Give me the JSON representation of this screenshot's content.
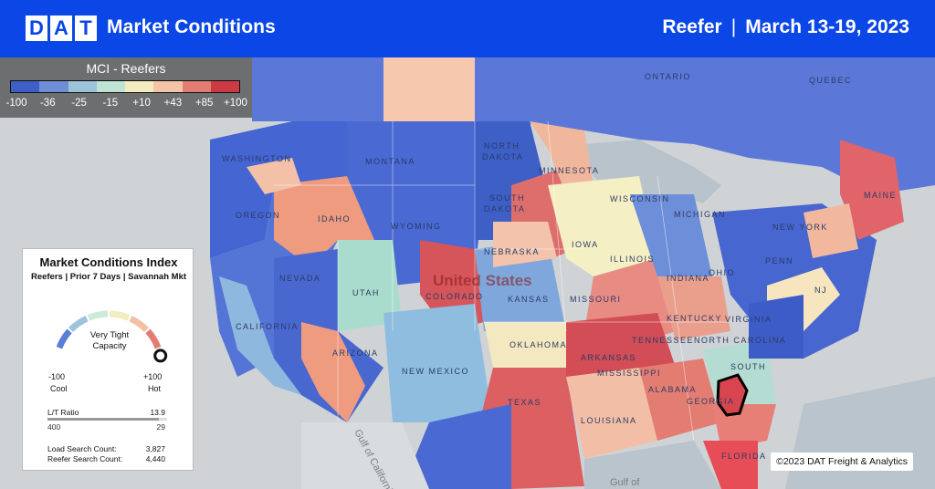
{
  "header": {
    "logo_letters": [
      "D",
      "A",
      "T"
    ],
    "title": "Market Conditions",
    "equipment": "Reefer",
    "separator": "|",
    "date_range": "March 13-19, 2023"
  },
  "legend": {
    "title": "MCI - Reefers",
    "ticks": [
      "-100",
      "-36",
      "-25",
      "-15",
      "+10",
      "+43",
      "+85",
      "+100"
    ],
    "colors": [
      "#3d5fc6",
      "#6e8fd6",
      "#9cc4d9",
      "#bfe3d5",
      "#f3ecbe",
      "#f4c4a6",
      "#e37d72",
      "#cc3a44"
    ]
  },
  "panel": {
    "title": "Market Conditions Index",
    "subtitle": "Reefers | Prior 7 Days | Savannah Mkt",
    "gauge_value": 100,
    "gauge_label_line1": "Very Tight",
    "gauge_label_line2": "Capacity",
    "min_label": "-100",
    "max_label": "+100",
    "cool_label": "Cool",
    "hot_label": "Hot",
    "ratio_label": "L/T Ratio",
    "ratio_value": "13.9",
    "loads_value": "400",
    "trucks_value": "29",
    "load_search_label": "Load Search Count:",
    "load_search_value": "3,827",
    "reefer_search_label": "Reefer Search Count:",
    "reefer_search_value": "4,440"
  },
  "map_labels": {
    "ontario": "ONTARIO",
    "quebec": "QUEBEC",
    "washington": "WASHINGTON",
    "montana": "MONTANA",
    "north_dakota_1": "NORTH",
    "north_dakota_2": "DAKOTA",
    "minnesota": "MINNESOTA",
    "oregon": "OREGON",
    "idaho": "IDAHO",
    "wyoming": "WYOMING",
    "south_dakota_1": "SOUTH",
    "south_dakota_2": "DAKOTA",
    "wisconsin": "WISCONSIN",
    "michigan": "MICHIGAN",
    "maine": "MAINE",
    "new_york": "NEW YORK",
    "nevada": "NEVADA",
    "utah": "UTAH",
    "colorado": "COLORADO",
    "nebraska": "NEBRASKA",
    "iowa": "IOWA",
    "illinois": "ILLINOIS",
    "indiana": "INDIANA",
    "ohio": "OHIO",
    "penn": "PENN",
    "nj": "NJ",
    "united_states": "United States",
    "kansas": "KANSAS",
    "missouri": "MISSOURI",
    "kentucky": "KENTUCKY",
    "virginia": "VIRGINIA",
    "california": "CALIFORNIA",
    "arizona": "ARIZONA",
    "new_mexico": "NEW MEXICO",
    "oklahoma": "OKLAHOMA",
    "arkansas": "ARKANSAS",
    "tennessee": "TENNESSEE",
    "north_carolina": "NORTH CAROLINA",
    "south": "SOUTH",
    "mississippi": "MISSISSIPPI",
    "alabama": "ALABAMA",
    "georgia": "GEORGIA",
    "texas": "TEXAS",
    "louisiana": "LOUISIANA",
    "florida": "FLORIDA",
    "gulf_of_california": "Gulf of California",
    "gulf_of": "Gulf of"
  },
  "copyright": "©2023 DAT Freight & Analytics"
}
